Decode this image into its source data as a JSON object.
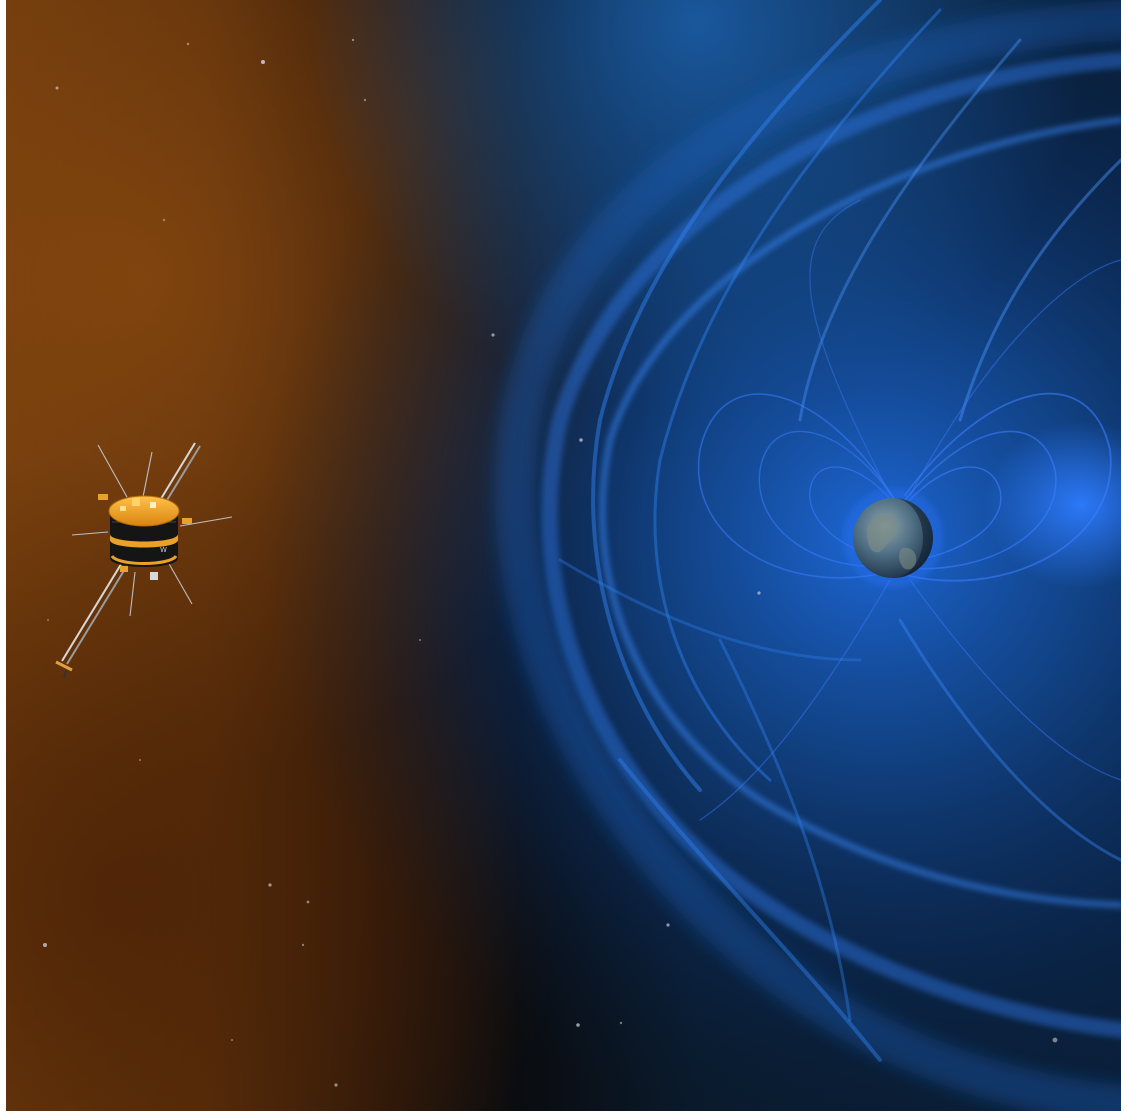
{
  "scene": {
    "subjects": [
      "spacecraft",
      "earth",
      "magnetosphere",
      "solar-wind",
      "starfield"
    ],
    "colors": {
      "solar_wind_orange": "#7a3f0c",
      "solar_wind_dark": "#3a1c06",
      "space_black": "#06080d",
      "space_navy": "#0a1a2e",
      "magnetosphere_blue": "#1f6fd6",
      "magnetosphere_glow": "#2b8cff",
      "field_line_blue": "#3b7dff",
      "spacecraft_gold": "#f0a020",
      "spacecraft_body": "#1a1a1a",
      "earth_ocean": "#3d5f78",
      "earth_land": "#6b7f86",
      "border_white": "#ffffff"
    }
  }
}
